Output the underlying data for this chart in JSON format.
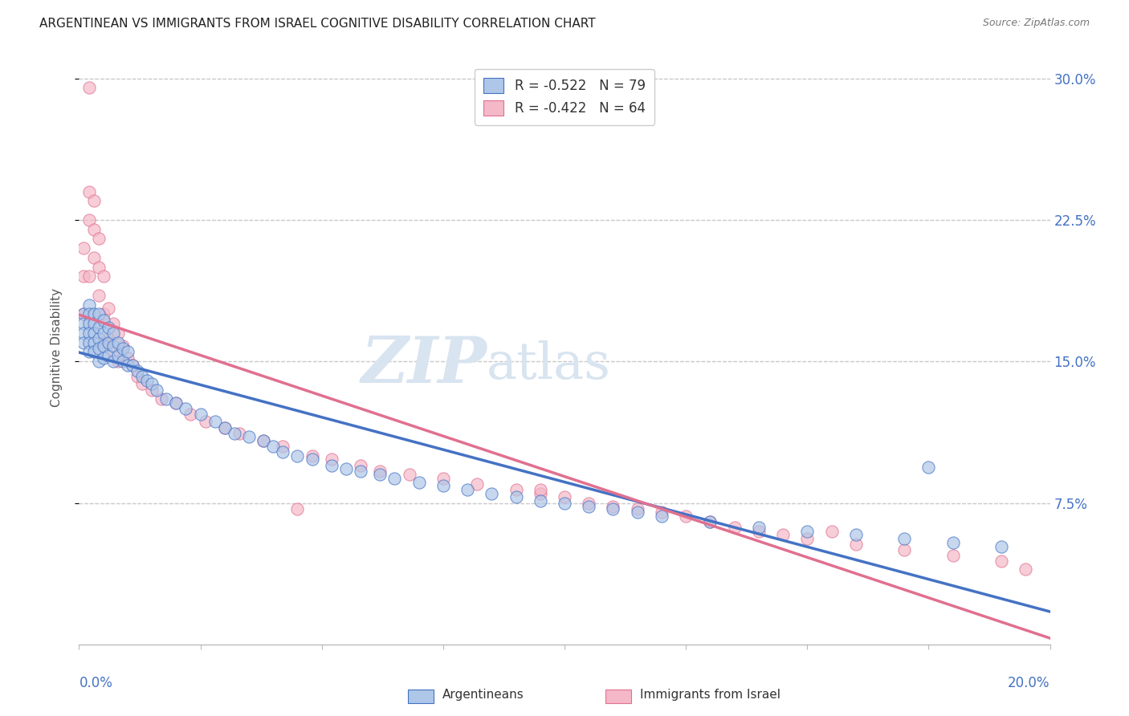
{
  "title": "ARGENTINEAN VS IMMIGRANTS FROM ISRAEL COGNITIVE DISABILITY CORRELATION CHART",
  "source": "Source: ZipAtlas.com",
  "ylabel": "Cognitive Disability",
  "xlim": [
    0.0,
    0.2
  ],
  "ylim": [
    0.0,
    0.315
  ],
  "legend_r1": "R = -0.522",
  "legend_n1": "N = 79",
  "legend_r2": "R = -0.422",
  "legend_n2": "N = 64",
  "series1_label": "Argentineans",
  "series2_label": "Immigrants from Israel",
  "color1": "#aec6e8",
  "color2": "#f4b8c8",
  "trendline1_color": "#4472c4",
  "trendline2_color": "#e07090",
  "watermark_zip": "ZIP",
  "watermark_atlas": "atlas",
  "background_color": "#ffffff",
  "grid_color": "#cccccc",
  "scatter1_x": [
    0.001,
    0.001,
    0.001,
    0.001,
    0.002,
    0.002,
    0.002,
    0.002,
    0.002,
    0.002,
    0.003,
    0.003,
    0.003,
    0.003,
    0.003,
    0.004,
    0.004,
    0.004,
    0.004,
    0.004,
    0.005,
    0.005,
    0.005,
    0.005,
    0.006,
    0.006,
    0.006,
    0.007,
    0.007,
    0.007,
    0.008,
    0.008,
    0.009,
    0.009,
    0.01,
    0.01,
    0.011,
    0.012,
    0.013,
    0.014,
    0.015,
    0.016,
    0.018,
    0.02,
    0.022,
    0.025,
    0.028,
    0.03,
    0.032,
    0.035,
    0.038,
    0.04,
    0.042,
    0.045,
    0.048,
    0.052,
    0.055,
    0.058,
    0.062,
    0.065,
    0.07,
    0.075,
    0.08,
    0.085,
    0.09,
    0.095,
    0.1,
    0.105,
    0.11,
    0.115,
    0.12,
    0.13,
    0.14,
    0.15,
    0.16,
    0.17,
    0.175,
    0.18,
    0.19
  ],
  "scatter1_y": [
    0.175,
    0.17,
    0.165,
    0.16,
    0.18,
    0.175,
    0.17,
    0.165,
    0.16,
    0.155,
    0.175,
    0.17,
    0.165,
    0.16,
    0.155,
    0.175,
    0.168,
    0.162,
    0.157,
    0.15,
    0.172,
    0.165,
    0.158,
    0.152,
    0.168,
    0.16,
    0.153,
    0.165,
    0.158,
    0.15,
    0.16,
    0.153,
    0.157,
    0.15,
    0.155,
    0.148,
    0.148,
    0.145,
    0.142,
    0.14,
    0.138,
    0.135,
    0.13,
    0.128,
    0.125,
    0.122,
    0.118,
    0.115,
    0.112,
    0.11,
    0.108,
    0.105,
    0.102,
    0.1,
    0.098,
    0.095,
    0.093,
    0.092,
    0.09,
    0.088,
    0.086,
    0.084,
    0.082,
    0.08,
    0.078,
    0.076,
    0.075,
    0.073,
    0.072,
    0.07,
    0.068,
    0.065,
    0.062,
    0.06,
    0.058,
    0.056,
    0.094,
    0.054,
    0.052
  ],
  "scatter2_x": [
    0.001,
    0.001,
    0.001,
    0.002,
    0.002,
    0.002,
    0.002,
    0.003,
    0.003,
    0.003,
    0.004,
    0.004,
    0.004,
    0.005,
    0.005,
    0.005,
    0.006,
    0.006,
    0.007,
    0.007,
    0.008,
    0.008,
    0.009,
    0.01,
    0.011,
    0.012,
    0.013,
    0.015,
    0.017,
    0.02,
    0.023,
    0.026,
    0.03,
    0.033,
    0.038,
    0.042,
    0.048,
    0.052,
    0.058,
    0.062,
    0.068,
    0.075,
    0.082,
    0.09,
    0.095,
    0.1,
    0.105,
    0.11,
    0.115,
    0.12,
    0.125,
    0.13,
    0.135,
    0.14,
    0.145,
    0.15,
    0.16,
    0.17,
    0.18,
    0.19,
    0.195,
    0.155,
    0.095,
    0.045
  ],
  "scatter2_y": [
    0.21,
    0.195,
    0.175,
    0.295,
    0.24,
    0.225,
    0.195,
    0.235,
    0.22,
    0.205,
    0.215,
    0.2,
    0.185,
    0.195,
    0.175,
    0.16,
    0.178,
    0.162,
    0.17,
    0.155,
    0.165,
    0.15,
    0.158,
    0.152,
    0.148,
    0.142,
    0.138,
    0.135,
    0.13,
    0.128,
    0.122,
    0.118,
    0.115,
    0.112,
    0.108,
    0.105,
    0.1,
    0.098,
    0.095,
    0.092,
    0.09,
    0.088,
    0.085,
    0.082,
    0.08,
    0.078,
    0.075,
    0.073,
    0.072,
    0.07,
    0.068,
    0.065,
    0.062,
    0.06,
    0.058,
    0.056,
    0.053,
    0.05,
    0.047,
    0.044,
    0.04,
    0.06,
    0.082,
    0.072
  ]
}
